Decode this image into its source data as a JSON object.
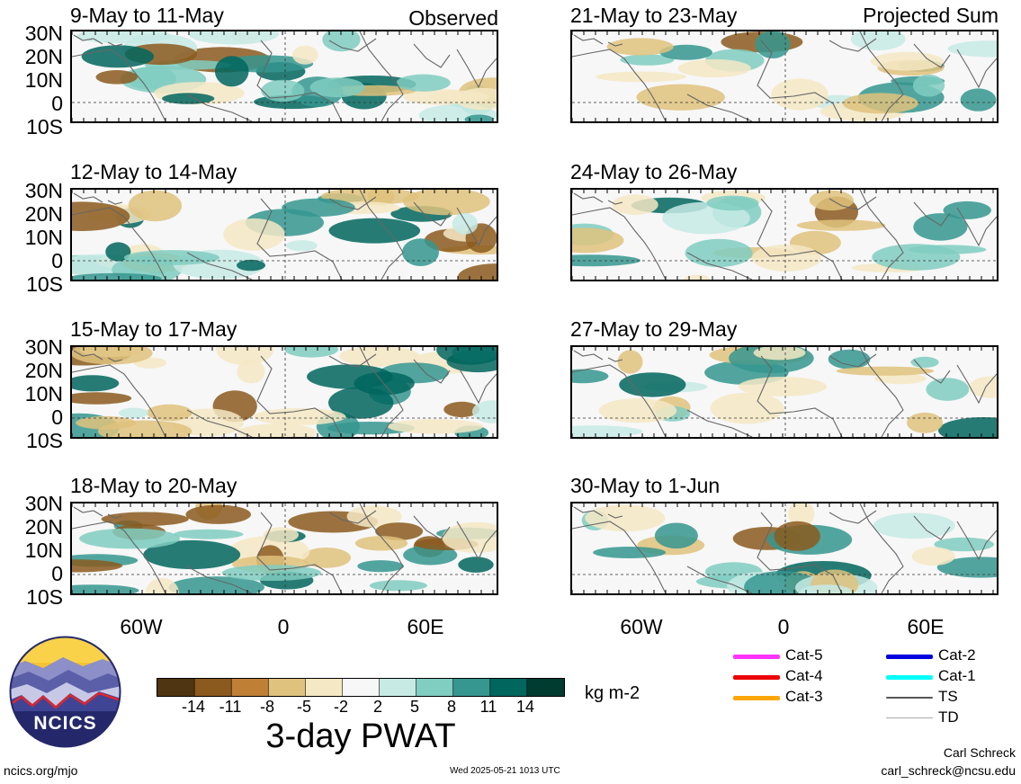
{
  "panels_left": [
    {
      "title": "9-May to 11-May",
      "tag": "Observed"
    },
    {
      "title": "12-May to 14-May",
      "tag": ""
    },
    {
      "title": "15-May to 17-May",
      "tag": ""
    },
    {
      "title": "18-May to 20-May",
      "tag": ""
    }
  ],
  "panels_right": [
    {
      "title": "21-May to 23-May",
      "tag": "Projected Sum"
    },
    {
      "title": "24-May to 26-May",
      "tag": ""
    },
    {
      "title": "27-May to 29-May",
      "tag": ""
    },
    {
      "title": "30-May to 1-Jun",
      "tag": ""
    }
  ],
  "lat_labels": [
    "30N",
    "20N",
    "10N",
    "0",
    "10S"
  ],
  "lon_labels": [
    "60W",
    "0",
    "60E"
  ],
  "colorbar": {
    "title": "3-day PWAT",
    "units": "kg m-2",
    "ticks": [
      "-14",
      "-11",
      "-8",
      "-5",
      "-2",
      "2",
      "5",
      "8",
      "11",
      "14"
    ],
    "colors": [
      "#4f3511",
      "#8b5a1f",
      "#bf8036",
      "#dfc27d",
      "#f5e8c4",
      "#f7f7f7",
      "#c7eae5",
      "#80cdc1",
      "#35978f",
      "#01665e",
      "#003c30"
    ]
  },
  "storm_legend": [
    {
      "label": "Cat-5",
      "color": "#ff33ff"
    },
    {
      "label": "Cat-4",
      "color": "#ee0000"
    },
    {
      "label": "Cat-3",
      "color": "#ffa500"
    },
    {
      "label": "Cat-2",
      "color": "#0000dd"
    },
    {
      "label": "Cat-1",
      "color": "#00ffff"
    },
    {
      "label": "TS",
      "color": "#555555"
    },
    {
      "label": "TD",
      "color": "#aaaaaa"
    }
  ],
  "logo": {
    "text": "NCICS"
  },
  "footer": {
    "url": "ncics.org/mjo",
    "timestamp": "Wed 2025-05-21 1013 UTC",
    "author": "Carl Schreck",
    "email": "carl_schreck@ncsu.edu"
  }
}
